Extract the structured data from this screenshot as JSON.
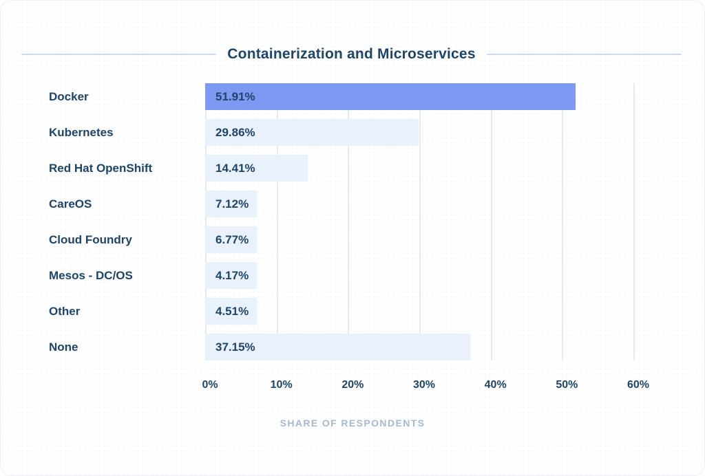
{
  "chart_data": {
    "type": "bar",
    "orientation": "horizontal",
    "title": "Containerization and Microservices",
    "categories": [
      "Docker",
      "Kubernetes",
      "Red Hat OpenShift",
      "CareOS",
      "Cloud Foundry",
      "Mesos - DC/OS",
      "Other",
      "None"
    ],
    "values": [
      51.91,
      29.86,
      14.41,
      7.12,
      6.77,
      4.17,
      4.51,
      37.15
    ],
    "value_labels": [
      "51.91%",
      "29.86%",
      "14.41%",
      "7.12%",
      "6.77%",
      "4.17%",
      "4.51%",
      "37.15%"
    ],
    "xlabel": "SHARE OF RESPONDENTS",
    "ylabel": "",
    "xlim": [
      0,
      60
    ],
    "xticks": [
      {
        "value": 0,
        "label": "0%"
      },
      {
        "value": 10,
        "label": "10%"
      },
      {
        "value": 20,
        "label": "20%"
      },
      {
        "value": 30,
        "label": "30%"
      },
      {
        "value": 40,
        "label": "40%"
      },
      {
        "value": 50,
        "label": "50%"
      },
      {
        "value": 60,
        "label": "60%"
      }
    ],
    "grid": "vertical gridlines at 10% intervals",
    "legend_position": "none",
    "highlight_index": 0,
    "colors": {
      "highlight_bar": "#7d99f1",
      "bar": "#e9f1fc",
      "text": "#1d4469",
      "gridline": "#e3eaf4",
      "axis_caption": "#a5bad2",
      "title_rule": "#cfd9e7"
    }
  }
}
